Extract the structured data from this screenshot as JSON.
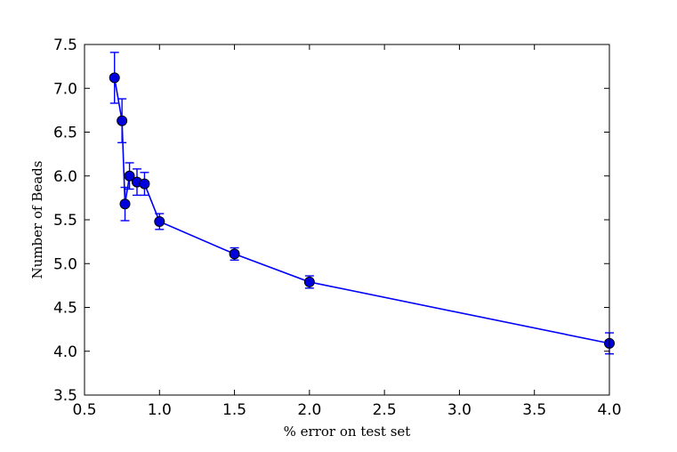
{
  "chart_data": {
    "type": "line",
    "title": "",
    "xlabel": "% error on test set",
    "ylabel": "Number of Beads",
    "xlim": [
      0.5,
      4.0
    ],
    "ylim": [
      3.5,
      7.5
    ],
    "xticks": [
      0.5,
      1.0,
      1.5,
      2.0,
      2.5,
      3.0,
      3.5,
      4.0
    ],
    "xtick_labels": [
      "0.5",
      "1.0",
      "1.5",
      "2.0",
      "2.5",
      "3.0",
      "3.5",
      "4.0"
    ],
    "yticks": [
      3.5,
      4.0,
      4.5,
      5.0,
      5.5,
      6.0,
      6.5,
      7.0,
      7.5
    ],
    "ytick_labels": [
      "3.5",
      "4.0",
      "4.5",
      "5.0",
      "5.5",
      "6.0",
      "6.5",
      "7.0",
      "7.5"
    ],
    "grid": false,
    "color": "#0000ff",
    "marker_color": "#0000dd",
    "series": [
      {
        "x": [
          0.7,
          0.75,
          0.77,
          0.8,
          0.85,
          0.9,
          1.0,
          1.5,
          2.0,
          4.0
        ],
        "y": [
          7.12,
          6.63,
          5.68,
          6.0,
          5.93,
          5.91,
          5.48,
          5.11,
          4.79,
          4.09
        ],
        "err": [
          0.29,
          0.25,
          0.19,
          0.15,
          0.15,
          0.13,
          0.09,
          0.07,
          0.07,
          0.12
        ]
      }
    ]
  }
}
